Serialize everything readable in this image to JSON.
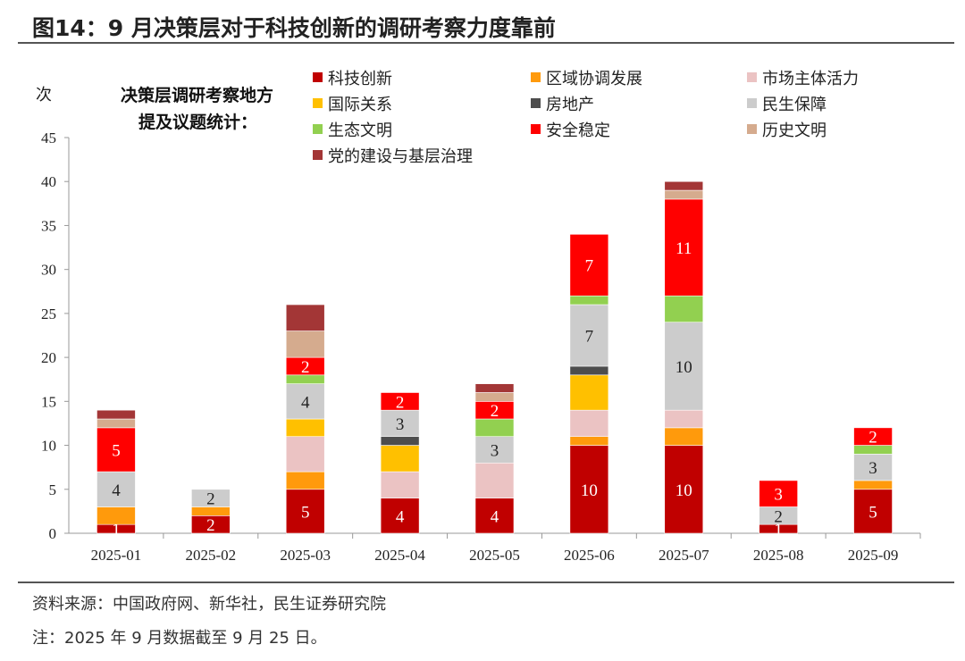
{
  "header": {
    "title": "图14：9 月决策层对于科技创新的调研考察力度靠前"
  },
  "footer": {
    "source": "资料来源：中国政府网、新华社，民生证券研究院",
    "note": "注：2025 年 9 月数据截至 9 月 25 日。"
  },
  "chart_data": {
    "type": "bar",
    "stacked": true,
    "title": "决策层调研考察地方提及议题统计：",
    "ylabel": "次",
    "xlabel": "",
    "ylim": [
      0,
      45
    ],
    "yticks": [
      0,
      5,
      10,
      15,
      20,
      25,
      30,
      35,
      40,
      45
    ],
    "grid": false,
    "legend_position": "top",
    "categories": [
      "2025-01",
      "2025-02",
      "2025-03",
      "2025-04",
      "2025-05",
      "2025-06",
      "2025-07",
      "2025-08",
      "2025-09"
    ],
    "series": [
      {
        "name": "科技创新",
        "color": "#C00000",
        "label_color": "#ffffff",
        "labeled": true,
        "values": [
          1,
          2,
          5,
          4,
          4,
          10,
          10,
          1,
          5
        ]
      },
      {
        "name": "区域协调发展",
        "color": "#FF9A0C",
        "labeled": false,
        "values": [
          2,
          1,
          2,
          0,
          0,
          1,
          2,
          0,
          1
        ]
      },
      {
        "name": "市场主体活力",
        "color": "#EBC3C3",
        "labeled": false,
        "values": [
          0,
          0,
          4,
          3,
          4,
          3,
          2,
          0,
          0
        ]
      },
      {
        "name": "国际关系",
        "color": "#FFC000",
        "labeled": false,
        "values": [
          0,
          0,
          2,
          3,
          0,
          4,
          0,
          0,
          0
        ]
      },
      {
        "name": "房地产",
        "color": "#4D4D4D",
        "labeled": false,
        "values": [
          0,
          0,
          0,
          1,
          0,
          1,
          0,
          0,
          0
        ]
      },
      {
        "name": "民生保障",
        "color": "#CCCCCC",
        "label_color": "#222222",
        "labeled": true,
        "values": [
          4,
          2,
          4,
          3,
          3,
          7,
          10,
          2,
          3
        ]
      },
      {
        "name": "生态文明",
        "color": "#92D050",
        "labeled": false,
        "values": [
          0,
          0,
          1,
          0,
          2,
          1,
          3,
          0,
          1
        ]
      },
      {
        "name": "安全稳定",
        "color": "#FF0000",
        "label_color": "#ffffff",
        "labeled": true,
        "values": [
          5,
          0,
          2,
          2,
          2,
          7,
          11,
          3,
          2
        ]
      },
      {
        "name": "历史文明",
        "color": "#D5AB8E",
        "labeled": false,
        "values": [
          1,
          0,
          3,
          0,
          1,
          0,
          1,
          0,
          0
        ]
      },
      {
        "name": "党的建设与基层治理",
        "color": "#A33636",
        "labeled": false,
        "values": [
          1,
          0,
          3,
          0,
          1,
          0,
          1,
          0,
          0
        ]
      }
    ]
  }
}
